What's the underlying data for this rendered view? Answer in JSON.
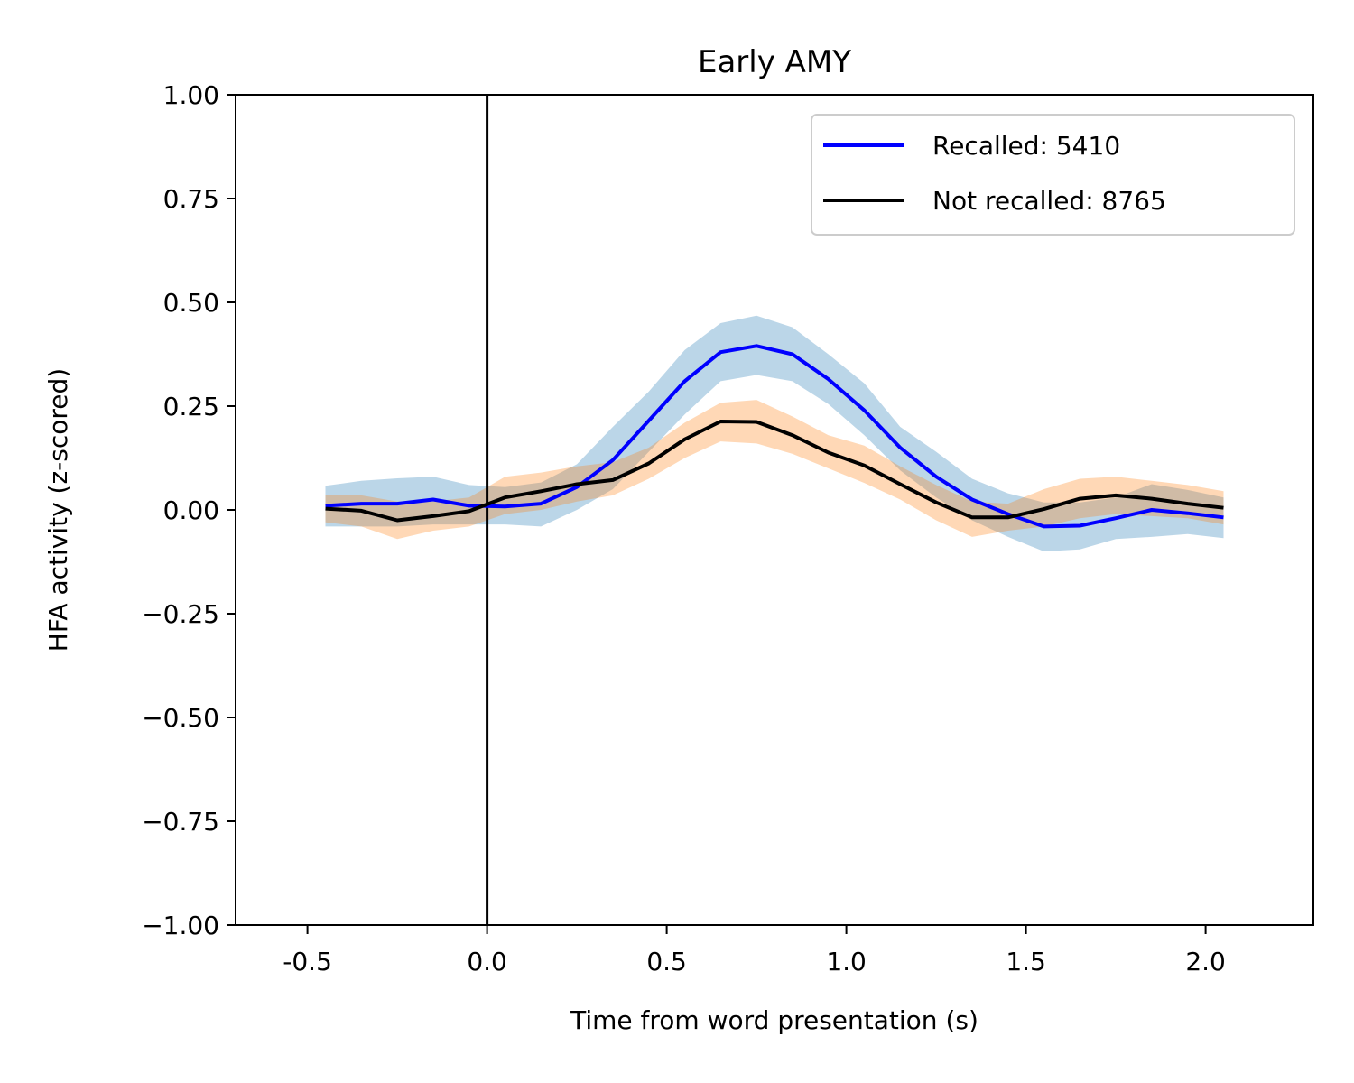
{
  "chart_data": {
    "type": "line",
    "title": "Early AMY",
    "xlabel": "Time from word presentation (s)",
    "ylabel": "HFA activity (z-scored)",
    "xlim": [
      -0.7,
      2.3
    ],
    "ylim": [
      -1.0,
      1.0
    ],
    "xticks": [
      -0.5,
      0.0,
      0.5,
      1.0,
      1.5,
      2.0
    ],
    "xtick_labels": [
      "-0.5",
      "0.0",
      "0.5",
      "1.0",
      "1.5",
      "2.0"
    ],
    "yticks": [
      1.0,
      0.75,
      0.5,
      0.25,
      0.0,
      -0.25,
      -0.5,
      -0.75,
      -1.0
    ],
    "ytick_labels": [
      "1.00",
      "0.75",
      "0.50",
      "0.25",
      "0.00",
      "−0.25",
      "−0.50",
      "−0.75",
      "−1.00"
    ],
    "vertical_line_x": 0.0,
    "grid": false,
    "legend_position": "upper-right",
    "x": [
      -0.45,
      -0.35,
      -0.25,
      -0.15,
      -0.05,
      0.05,
      0.15,
      0.25,
      0.35,
      0.45,
      0.55,
      0.65,
      0.75,
      0.85,
      0.95,
      1.05,
      1.15,
      1.25,
      1.35,
      1.45,
      1.55,
      1.65,
      1.75,
      1.85,
      1.95,
      2.05
    ],
    "series": [
      {
        "name": "Recalled: 5410",
        "line_color": "#0000ff",
        "band_color": "#1f77b4",
        "values": [
          0.01,
          0.015,
          0.015,
          0.025,
          0.01,
          0.008,
          0.015,
          0.055,
          0.12,
          0.215,
          0.31,
          0.38,
          0.395,
          0.375,
          0.315,
          0.24,
          0.15,
          0.08,
          0.025,
          -0.01,
          -0.04,
          -0.038,
          -0.02,
          0.0,
          -0.008,
          -0.018
        ],
        "lower": [
          -0.04,
          -0.04,
          -0.04,
          -0.035,
          -0.035,
          -0.035,
          -0.04,
          0.0,
          0.05,
          0.14,
          0.23,
          0.31,
          0.325,
          0.31,
          0.255,
          0.18,
          0.095,
          0.03,
          -0.025,
          -0.065,
          -0.1,
          -0.095,
          -0.07,
          -0.065,
          -0.058,
          -0.068
        ],
        "upper": [
          0.058,
          0.07,
          0.076,
          0.08,
          0.06,
          0.055,
          0.066,
          0.11,
          0.2,
          0.285,
          0.385,
          0.45,
          0.468,
          0.44,
          0.375,
          0.305,
          0.2,
          0.14,
          0.075,
          0.04,
          0.018,
          0.018,
          0.03,
          0.062,
          0.048,
          0.03
        ]
      },
      {
        "name": "Not recalled: 8765",
        "line_color": "#000000",
        "band_color": "#ff7f0e",
        "values": [
          0.003,
          -0.002,
          -0.025,
          -0.015,
          -0.003,
          0.03,
          0.045,
          0.062,
          0.072,
          0.112,
          0.17,
          0.213,
          0.212,
          0.18,
          0.138,
          0.107,
          0.062,
          0.018,
          -0.018,
          -0.018,
          0.002,
          0.027,
          0.035,
          0.027,
          0.015,
          0.005
        ],
        "lower": [
          -0.03,
          -0.04,
          -0.07,
          -0.05,
          -0.04,
          -0.01,
          0.0,
          0.02,
          0.035,
          0.075,
          0.125,
          0.165,
          0.16,
          0.135,
          0.1,
          0.065,
          0.025,
          -0.025,
          -0.065,
          -0.05,
          -0.04,
          -0.02,
          -0.01,
          -0.015,
          -0.02,
          -0.035
        ],
        "upper": [
          0.035,
          0.035,
          0.02,
          0.02,
          0.03,
          0.08,
          0.09,
          0.105,
          0.115,
          0.15,
          0.21,
          0.258,
          0.265,
          0.225,
          0.18,
          0.155,
          0.105,
          0.06,
          0.02,
          0.015,
          0.05,
          0.075,
          0.08,
          0.07,
          0.06,
          0.045
        ]
      }
    ]
  }
}
